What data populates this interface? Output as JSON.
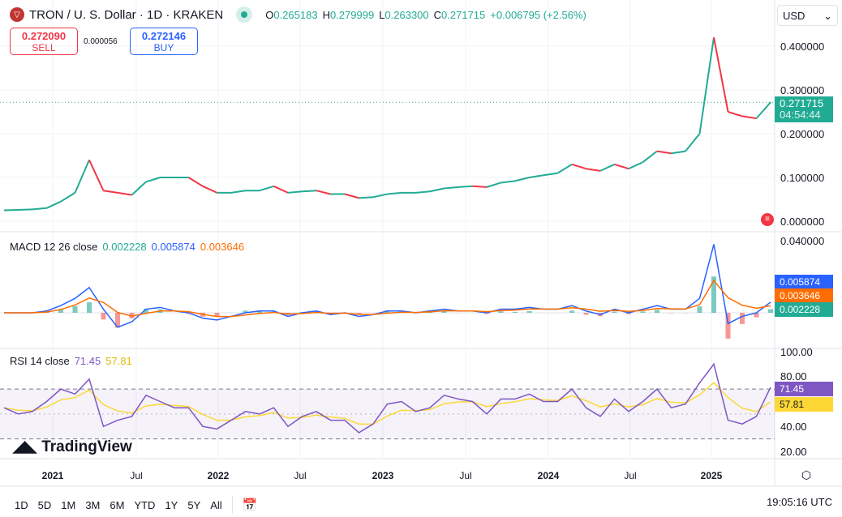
{
  "header": {
    "title": "TRON / U. S. Dollar · 1D · KRAKEN",
    "open_label": "O",
    "open": "0.265183",
    "high_label": "H",
    "high": "0.279999",
    "low_label": "L",
    "low": "0.263300",
    "close_label": "C",
    "close": "0.271715",
    "change": "+0.006795 (+2.56%)"
  },
  "trade": {
    "sell_price": "0.272090",
    "sell_label": "SELL",
    "spread": "0.000056",
    "buy_price": "0.272146",
    "buy_label": "BUY"
  },
  "currency": "USD",
  "price_axis": [
    "0.400000",
    "0.300000",
    "0.200000",
    "0.100000",
    "0.000000"
  ],
  "last_price": {
    "value": "0.271715",
    "countdown": "04:54:44"
  },
  "macd": {
    "label": "MACD 12 26 close",
    "hist": "0.002228",
    "macd": "0.005874",
    "signal": "0.003646",
    "axis_top": "0.040000"
  },
  "rsi": {
    "label": "RSI 14 close",
    "rsi": "71.45",
    "ma": "57.81",
    "axis": [
      "100.00",
      "80.00",
      "40.00",
      "20.00"
    ]
  },
  "time_axis": [
    {
      "t": "2021",
      "year": true
    },
    {
      "t": "Jul"
    },
    {
      "t": "2022",
      "year": true
    },
    {
      "t": "Jul"
    },
    {
      "t": "2023",
      "year": true
    },
    {
      "t": "Jul"
    },
    {
      "t": "2024",
      "year": true
    },
    {
      "t": "Jul"
    },
    {
      "t": "2025",
      "year": true
    }
  ],
  "ranges": [
    "1D",
    "5D",
    "1M",
    "3M",
    "6M",
    "YTD",
    "1Y",
    "5Y",
    "All"
  ],
  "clock": "19:05:16 UTC",
  "brand": "TradingView",
  "colors": {
    "up": "#22ab94",
    "down": "#f23645",
    "macd": "#2962ff",
    "signal": "#ff6d00",
    "rsi": "#7e57c2",
    "rsi_ma": "#fdd835"
  },
  "chart_data": {
    "type": "line",
    "months": [
      "2020-10",
      "2020-11",
      "2020-12",
      "2021-01",
      "2021-02",
      "2021-03",
      "2021-04",
      "2021-05",
      "2021-06",
      "2021-07",
      "2021-08",
      "2021-09",
      "2021-10",
      "2021-11",
      "2021-12",
      "2022-01",
      "2022-02",
      "2022-03",
      "2022-04",
      "2022-05",
      "2022-06",
      "2022-07",
      "2022-08",
      "2022-09",
      "2022-10",
      "2022-11",
      "2022-12",
      "2023-01",
      "2023-02",
      "2023-03",
      "2023-04",
      "2023-05",
      "2023-06",
      "2023-07",
      "2023-08",
      "2023-09",
      "2023-10",
      "2023-11",
      "2023-12",
      "2024-01",
      "2024-02",
      "2024-03",
      "2024-04",
      "2024-05",
      "2024-06",
      "2024-07",
      "2024-08",
      "2024-09",
      "2024-10",
      "2024-11",
      "2024-12",
      "2025-01",
      "2025-02",
      "2025-03",
      "2025-04"
    ],
    "price": [
      0.025,
      0.026,
      0.027,
      0.03,
      0.045,
      0.065,
      0.14,
      0.07,
      0.065,
      0.06,
      0.09,
      0.1,
      0.1,
      0.1,
      0.08,
      0.065,
      0.065,
      0.07,
      0.07,
      0.08,
      0.065,
      0.068,
      0.07,
      0.062,
      0.062,
      0.053,
      0.055,
      0.062,
      0.065,
      0.065,
      0.068,
      0.075,
      0.078,
      0.08,
      0.078,
      0.088,
      0.092,
      0.1,
      0.105,
      0.11,
      0.13,
      0.12,
      0.115,
      0.13,
      0.12,
      0.135,
      0.16,
      0.155,
      0.16,
      0.2,
      0.42,
      0.25,
      0.24,
      0.235,
      0.272
    ],
    "macd": [
      0,
      0,
      0,
      0.001,
      0.004,
      0.008,
      0.014,
      0.002,
      -0.008,
      -0.005,
      0.002,
      0.003,
      0.001,
      0.0,
      -0.003,
      -0.004,
      -0.002,
      0.0,
      0.001,
      0.001,
      -0.002,
      0.0,
      0.001,
      -0.001,
      0.0,
      -0.002,
      -0.001,
      0.001,
      0.001,
      0.0,
      0.001,
      0.002,
      0.001,
      0.001,
      0.0,
      0.002,
      0.002,
      0.003,
      0.002,
      0.002,
      0.004,
      0.001,
      -0.001,
      0.002,
      0.0,
      0.002,
      0.004,
      0.002,
      0.002,
      0.008,
      0.038,
      -0.006,
      -0.002,
      0.0,
      0.0059
    ],
    "rsi": [
      55,
      50,
      52,
      60,
      70,
      66,
      78,
      40,
      45,
      48,
      65,
      60,
      55,
      55,
      40,
      38,
      45,
      52,
      50,
      55,
      40,
      48,
      52,
      45,
      45,
      35,
      42,
      58,
      60,
      52,
      55,
      65,
      62,
      60,
      50,
      62,
      62,
      66,
      60,
      60,
      70,
      55,
      48,
      62,
      52,
      60,
      70,
      55,
      58,
      75,
      90,
      45,
      42,
      48,
      71.45
    ]
  }
}
